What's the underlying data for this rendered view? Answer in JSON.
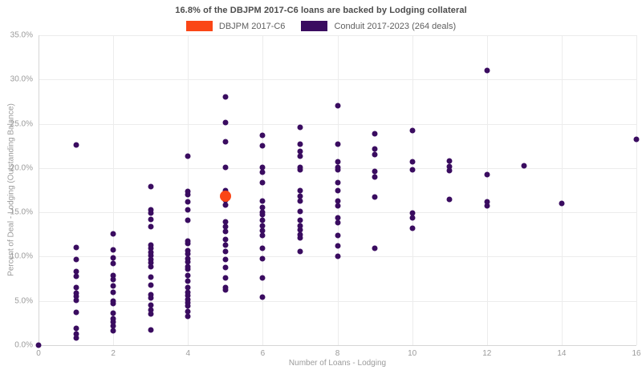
{
  "chart_data": {
    "type": "scatter",
    "title": "16.8% of the DBJPM 2017-C6 loans are backed by Lodging collateral",
    "xlabel": "Number of Loans - Lodging",
    "ylabel": "Percent of Deal - Lodging (Outstanding Balance)",
    "xlim": [
      0,
      16
    ],
    "ylim": [
      0,
      35
    ],
    "xticks": [
      0,
      2,
      4,
      6,
      8,
      10,
      12,
      14,
      16
    ],
    "xtick_labels": [
      "0",
      "2",
      "4",
      "6",
      "8",
      "10",
      "12",
      "14",
      "16"
    ],
    "yticks": [
      0,
      5,
      10,
      15,
      20,
      25,
      30,
      35
    ],
    "ytick_labels": [
      "0.0%",
      "5.0%",
      "10.0%",
      "15.0%",
      "20.0%",
      "25.0%",
      "30.0%",
      "35.0%"
    ],
    "grid": true,
    "legend_position": "top-center",
    "background_color": "#ffffff",
    "gridline_color": "#ececec",
    "series": [
      {
        "name": "DBJPM 2017-C6",
        "color": "#fa4616",
        "marker_size": 14,
        "points": [
          [
            5,
            16.8
          ]
        ]
      },
      {
        "name": "Conduit 2017-2023 (264 deals)",
        "color": "#3a0c60",
        "marker_size": 7,
        "points": [
          [
            0,
            0.0
          ],
          [
            1,
            22.6
          ],
          [
            1,
            11.0
          ],
          [
            1,
            9.7
          ],
          [
            1,
            8.3
          ],
          [
            1,
            7.8
          ],
          [
            1,
            6.5
          ],
          [
            1,
            5.9
          ],
          [
            1,
            5.5
          ],
          [
            1,
            5.1
          ],
          [
            1,
            3.7
          ],
          [
            1,
            1.9
          ],
          [
            1,
            1.3
          ],
          [
            1,
            0.8
          ],
          [
            2,
            12.6
          ],
          [
            2,
            10.8
          ],
          [
            2,
            9.9
          ],
          [
            2,
            9.2
          ],
          [
            2,
            7.9
          ],
          [
            2,
            7.4
          ],
          [
            2,
            6.7
          ],
          [
            2,
            6.0
          ],
          [
            2,
            5.0
          ],
          [
            2,
            4.7
          ],
          [
            2,
            3.6
          ],
          [
            2,
            3.0
          ],
          [
            2,
            2.6
          ],
          [
            2,
            2.2
          ],
          [
            2,
            1.6
          ],
          [
            3,
            17.9
          ],
          [
            3,
            15.3
          ],
          [
            3,
            14.9
          ],
          [
            3,
            14.2
          ],
          [
            3,
            13.4
          ],
          [
            3,
            11.3
          ],
          [
            3,
            10.9
          ],
          [
            3,
            10.5
          ],
          [
            3,
            10.1
          ],
          [
            3,
            9.7
          ],
          [
            3,
            9.3
          ],
          [
            3,
            8.9
          ],
          [
            3,
            7.7
          ],
          [
            3,
            6.8
          ],
          [
            3,
            5.7
          ],
          [
            3,
            5.3
          ],
          [
            3,
            4.5
          ],
          [
            3,
            4.0
          ],
          [
            3,
            3.5
          ],
          [
            3,
            1.7
          ],
          [
            4,
            21.3
          ],
          [
            4,
            17.4
          ],
          [
            4,
            17.0
          ],
          [
            4,
            16.2
          ],
          [
            4,
            15.3
          ],
          [
            4,
            14.1
          ],
          [
            4,
            11.8
          ],
          [
            4,
            11.5
          ],
          [
            4,
            10.7
          ],
          [
            4,
            10.3
          ],
          [
            4,
            9.8
          ],
          [
            4,
            9.4
          ],
          [
            4,
            8.9
          ],
          [
            4,
            8.6
          ],
          [
            4,
            7.9
          ],
          [
            4,
            7.2
          ],
          [
            4,
            6.5
          ],
          [
            4,
            6.0
          ],
          [
            4,
            5.6
          ],
          [
            4,
            5.2
          ],
          [
            4,
            4.8
          ],
          [
            4,
            4.4
          ],
          [
            4,
            3.8
          ],
          [
            4,
            3.3
          ],
          [
            5,
            28.0
          ],
          [
            5,
            25.1
          ],
          [
            5,
            23.0
          ],
          [
            5,
            20.1
          ],
          [
            5,
            17.5
          ],
          [
            5,
            17.1
          ],
          [
            5,
            16.4
          ],
          [
            5,
            15.8
          ],
          [
            5,
            13.9
          ],
          [
            5,
            13.4
          ],
          [
            5,
            12.8
          ],
          [
            5,
            11.9
          ],
          [
            5,
            11.3
          ],
          [
            5,
            10.6
          ],
          [
            5,
            9.7
          ],
          [
            5,
            8.8
          ],
          [
            5,
            7.6
          ],
          [
            5,
            6.5
          ],
          [
            5,
            6.2
          ],
          [
            6,
            23.7
          ],
          [
            6,
            22.5
          ],
          [
            6,
            20.1
          ],
          [
            6,
            19.5
          ],
          [
            6,
            18.4
          ],
          [
            6,
            16.3
          ],
          [
            6,
            15.6
          ],
          [
            6,
            15.0
          ],
          [
            6,
            14.7
          ],
          [
            6,
            14.1
          ],
          [
            6,
            13.5
          ],
          [
            6,
            12.9
          ],
          [
            6,
            12.4
          ],
          [
            6,
            10.9
          ],
          [
            6,
            9.8
          ],
          [
            6,
            7.6
          ],
          [
            6,
            5.4
          ],
          [
            7,
            24.6
          ],
          [
            7,
            22.7
          ],
          [
            7,
            21.9
          ],
          [
            7,
            21.3
          ],
          [
            7,
            20.1
          ],
          [
            7,
            19.8
          ],
          [
            7,
            17.5
          ],
          [
            7,
            16.8
          ],
          [
            7,
            16.3
          ],
          [
            7,
            15.1
          ],
          [
            7,
            14.1
          ],
          [
            7,
            13.5
          ],
          [
            7,
            13.0
          ],
          [
            7,
            12.5
          ],
          [
            7,
            12.1
          ],
          [
            7,
            10.6
          ],
          [
            8,
            27.0
          ],
          [
            8,
            22.7
          ],
          [
            8,
            20.7
          ],
          [
            8,
            20.1
          ],
          [
            8,
            19.8
          ],
          [
            8,
            18.4
          ],
          [
            8,
            17.5
          ],
          [
            8,
            16.3
          ],
          [
            8,
            15.7
          ],
          [
            8,
            14.4
          ],
          [
            8,
            13.8
          ],
          [
            8,
            12.4
          ],
          [
            8,
            11.2
          ],
          [
            8,
            10.0
          ],
          [
            9,
            23.9
          ],
          [
            9,
            22.2
          ],
          [
            9,
            21.5
          ],
          [
            9,
            19.6
          ],
          [
            9,
            19.0
          ],
          [
            9,
            16.7
          ],
          [
            9,
            10.9
          ],
          [
            10,
            24.2
          ],
          [
            10,
            20.7
          ],
          [
            10,
            19.8
          ],
          [
            10,
            14.9
          ],
          [
            10,
            14.4
          ],
          [
            10,
            13.2
          ],
          [
            11,
            20.8
          ],
          [
            11,
            20.2
          ],
          [
            11,
            19.7
          ],
          [
            11,
            16.5
          ],
          [
            12,
            31.0
          ],
          [
            12,
            19.3
          ],
          [
            12,
            16.2
          ],
          [
            12,
            15.7
          ],
          [
            13,
            20.3
          ],
          [
            14,
            16.0
          ],
          [
            16,
            23.2
          ]
        ]
      }
    ]
  }
}
